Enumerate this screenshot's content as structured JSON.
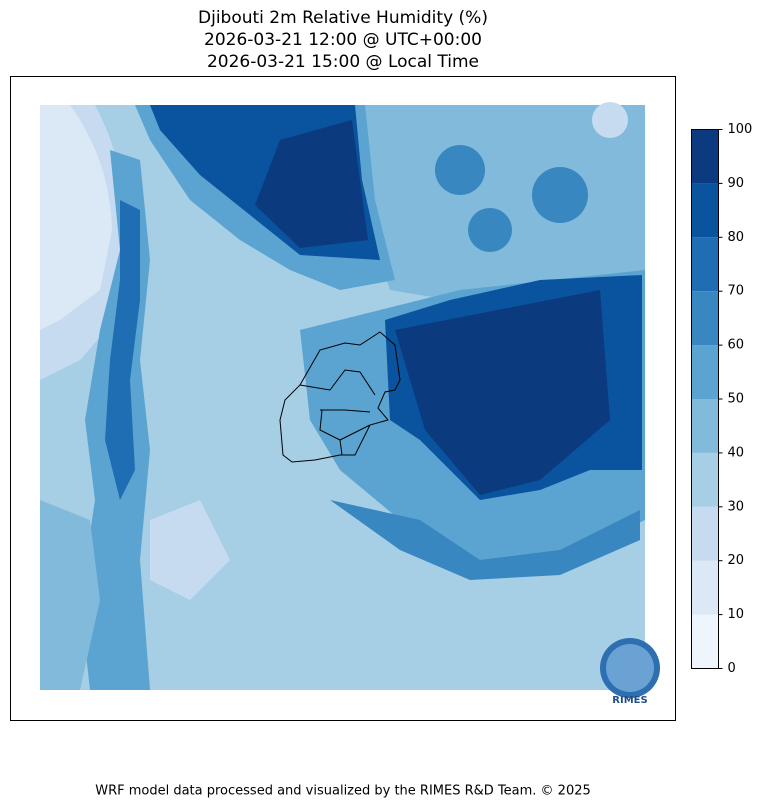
{
  "title": [
    "Djibouti 2m Relative Humidity (%)",
    "2026-03-21 12:00 @ UTC+00:00",
    "2026-03-21 15:00 @ Local Time"
  ],
  "colorbar": {
    "ticks": [
      0,
      10,
      20,
      30,
      40,
      50,
      60,
      70,
      80,
      90,
      100
    ],
    "colors": [
      "#eef5fc",
      "#dbe9f6",
      "#c6dbef",
      "#a6cee4",
      "#82badb",
      "#5ba3d0",
      "#3887c0",
      "#1f6eb3",
      "#0a539e",
      "#0b3b7e"
    ]
  },
  "logo_text": "RIMES",
  "footer": "WRF model data processed and visualized by the RIMES R&D Team. © 2025"
}
